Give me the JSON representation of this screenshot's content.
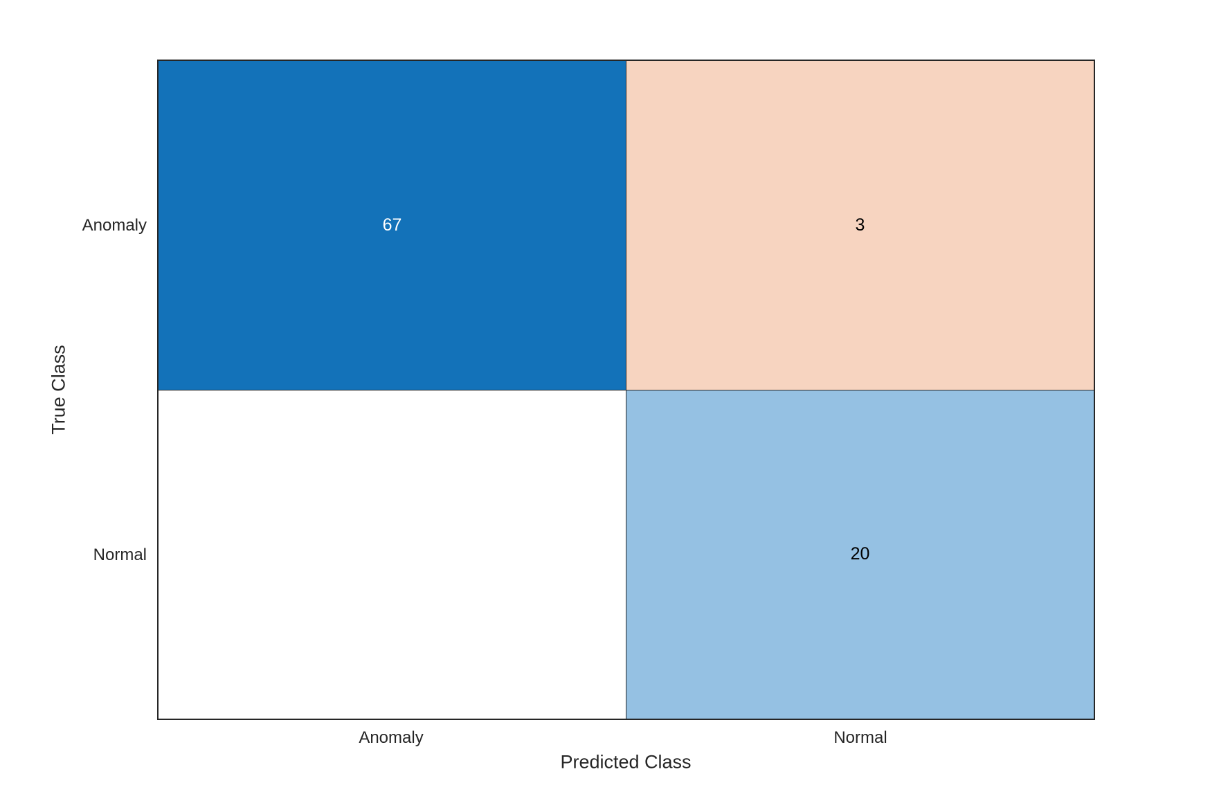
{
  "chart_data": {
    "type": "heatmap",
    "subtype": "confusion-matrix",
    "title": "",
    "xlabel": "Predicted Class",
    "ylabel": "True Class",
    "x_categories": [
      "Anomaly",
      "Normal"
    ],
    "y_categories": [
      "Anomaly",
      "Normal"
    ],
    "values": [
      [
        67,
        3
      ],
      [
        0,
        20
      ]
    ],
    "zero_cells_blank": true,
    "grid": "on",
    "legend": "none",
    "colors": {
      "true_positive_cell": "#1372B9",
      "false_negative_cell": "#F7D4C0",
      "false_positive_cell": "#FFFFFF",
      "true_negative_cell": "#95C1E3",
      "grid_line": "#262626",
      "axis_text": "#262626"
    }
  },
  "matrix": {
    "ylabel": "True Class",
    "xlabel": "Predicted Class",
    "row_labels": [
      "Anomaly",
      "Normal"
    ],
    "col_labels": [
      "Anomaly",
      "Normal"
    ],
    "cells": [
      {
        "display": "67",
        "bg": "#1372B9",
        "fg": "#FFFFFF"
      },
      {
        "display": "3",
        "bg": "#F7D4C0",
        "fg": "#000000"
      },
      {
        "display": "",
        "bg": "#FFFFFF",
        "fg": "#000000"
      },
      {
        "display": "20",
        "bg": "#95C1E3",
        "fg": "#000000"
      }
    ]
  }
}
